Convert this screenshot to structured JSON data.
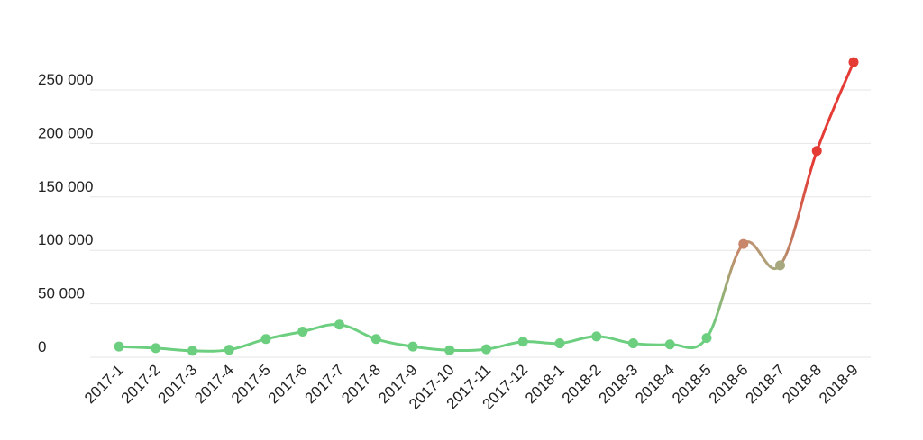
{
  "chart_data": {
    "type": "line",
    "title": "",
    "xlabel": "",
    "ylabel": "",
    "ylim": [
      0,
      275000
    ],
    "y_ticks": [
      {
        "value": 0,
        "label": "0"
      },
      {
        "value": 50000,
        "label": "50 000"
      },
      {
        "value": 100000,
        "label": "100 000"
      },
      {
        "value": 150000,
        "label": "150 000"
      },
      {
        "value": 200000,
        "label": "200 000"
      },
      {
        "value": 250000,
        "label": "250 000"
      }
    ],
    "grid": true,
    "categories": [
      "2017-1",
      "2017-2",
      "2017-3",
      "2017-4",
      "2017-5",
      "2017-6",
      "2017-7",
      "2017-8",
      "2017-9",
      "2017-10",
      "2017-11",
      "2017-12",
      "2018-1",
      "2018-2",
      "2018-3",
      "2018-4",
      "2018-5",
      "2018-6",
      "2018-7",
      "2018-8",
      "2018-9"
    ],
    "series": [
      {
        "values": [
          10000,
          8500,
          6000,
          7000,
          17000,
          24000,
          30500,
          17000,
          10000,
          6500,
          7500,
          14500,
          13000,
          19500,
          13000,
          12000,
          18000,
          106000,
          86000,
          193000,
          276000
        ],
        "colors": {
          "low": "#6ccf7f",
          "mid": "#c8876a",
          "mid_low": "#a8a87e",
          "high": "#e53b35"
        }
      }
    ]
  }
}
